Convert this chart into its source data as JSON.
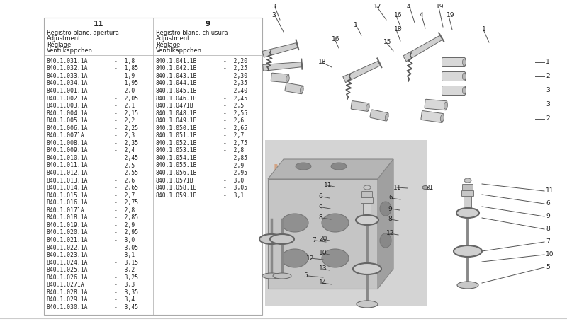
{
  "bg": "#ffffff",
  "table_border": "#aaaaaa",
  "col1_header": "11",
  "col2_header": "9",
  "col1_sub1": "Registro blanc. apertura",
  "col1_sub2": "Adjustment",
  "col1_sub3": "Réglage",
  "col1_sub4": "Ventilkäppchen",
  "col2_sub1": "Registro blanc. chiusura",
  "col2_sub2": "Adjustment",
  "col2_sub3": "Réglage",
  "col2_sub4": "Ventilkäppchen",
  "col1_data": [
    [
      "840.1.031.1A",
      "1,8"
    ],
    [
      "840.1.032.1A",
      "1,85"
    ],
    [
      "840.1.033.1A",
      "1,9"
    ],
    [
      "840.1.034.1A",
      "1,95"
    ],
    [
      "840.1.001.1A",
      "2,0"
    ],
    [
      "840.1.002.1A",
      "2,05"
    ],
    [
      "840.1.003.1A",
      "2,1"
    ],
    [
      "840.1.004.1A",
      "2,15"
    ],
    [
      "840.1.005.1A",
      "2,2"
    ],
    [
      "840.1.006.1A",
      "2,25"
    ],
    [
      "840.1.0071A",
      "2,3"
    ],
    [
      "840.1.008.1A",
      "2,35"
    ],
    [
      "840.1.009.1A",
      "2,4"
    ],
    [
      "840.1.010.1A",
      "2,45"
    ],
    [
      "840.1.011.1A",
      "2,5"
    ],
    [
      "840.1.012.1A",
      "2,55"
    ],
    [
      "840.1.013.1A",
      "2,6"
    ],
    [
      "840.1.014.1A",
      "2,65"
    ],
    [
      "840.1.015.1A",
      "2,7"
    ],
    [
      "840.1.016.1A",
      "2,75"
    ],
    [
      "840.1.0171A",
      "2,8"
    ],
    [
      "840.1.018.1A",
      "2,85"
    ],
    [
      "840.1.019.1A",
      "2,9"
    ],
    [
      "840.1.020.1A",
      "2,95"
    ],
    [
      "840.1.021.1A",
      "3,0"
    ],
    [
      "840.1.022.1A",
      "3,05"
    ],
    [
      "840.1.023.1A",
      "3,1"
    ],
    [
      "840.1.024.1A",
      "3,15"
    ],
    [
      "840.1.025.1A",
      "3,2"
    ],
    [
      "840.1.026.1A",
      "3,25"
    ],
    [
      "840.1.0271A",
      "3,3"
    ],
    [
      "840.1.028.1A",
      "3,35"
    ],
    [
      "840.1.029.1A",
      "3,4"
    ],
    [
      "840.1.030.1A",
      "3,45"
    ]
  ],
  "col2_data": [
    [
      "840.1.041.1B",
      "2,20"
    ],
    [
      "840.1.042.1B",
      "2,25"
    ],
    [
      "840.1.043.1B",
      "2,30"
    ],
    [
      "840.1.044.1B",
      "2,35"
    ],
    [
      "840.1.045.1B",
      "2,40"
    ],
    [
      "840.1.046.1B",
      "2,45"
    ],
    [
      "840.1.0471B",
      "2,5"
    ],
    [
      "840.1.048.1B",
      "2,55"
    ],
    [
      "840.1.049.1B",
      "2,6"
    ],
    [
      "840.1.050.1B",
      "2,65"
    ],
    [
      "840.1.051.1B",
      "2,7"
    ],
    [
      "840.1.052.1B",
      "2,75"
    ],
    [
      "840.1.053.1B",
      "2,8"
    ],
    [
      "840.1.054.1B",
      "2,85"
    ],
    [
      "840.1.055.1B",
      "2,9"
    ],
    [
      "840.1.056.1B",
      "2,95"
    ],
    [
      "840.1.0571B",
      "3,0"
    ],
    [
      "840.1.058.1B",
      "3,05"
    ],
    [
      "840.1.059.1B",
      "3,1"
    ]
  ],
  "diag_gray_bg": "#d4d4d4",
  "line_color": "#555555",
  "part_fill": "#e8e8e8",
  "part_edge": "#666666",
  "watermark_color": "#d4956a",
  "tc": "#222222",
  "fs_data": 5.8,
  "fs_header": 7.5,
  "fs_sub": 6.0,
  "fs_label": 6.5
}
